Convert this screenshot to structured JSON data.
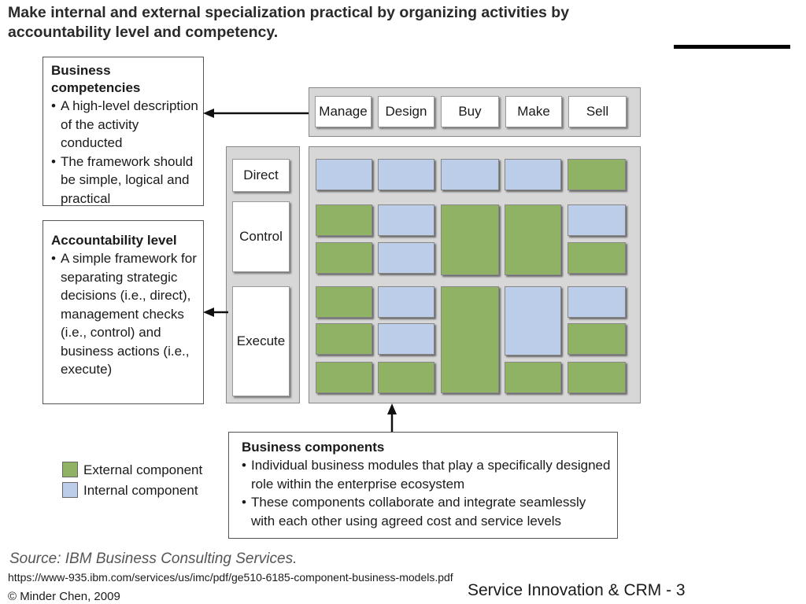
{
  "title": "Make internal and external specialization practical by organizing activities by accountability level and competency.",
  "competencies_box": {
    "heading": "Business competencies",
    "bullets": [
      "A high-level description of the activity conducted",
      "The framework should be simple, logical and practical"
    ]
  },
  "accountability_box": {
    "heading": "Accountability level",
    "bullets": [
      "A simple framework for separating strategic decisions (i.e., direct), management checks (i.e., control) and business actions (i.e., execute)"
    ]
  },
  "components_box": {
    "heading": "Business components",
    "bullets": [
      "Individual business modules that play a specifically designed role within the enterprise ecosystem",
      "These components collaborate and integrate seamlessly with each other using agreed cost and service levels"
    ]
  },
  "competencies": [
    "Manage",
    "Design",
    "Buy",
    "Make",
    "Sell"
  ],
  "levels": [
    "Direct",
    "Control",
    "Execute"
  ],
  "legend": {
    "external": "External component",
    "internal": "Internal component"
  },
  "colors": {
    "external": "#8fb264",
    "internal": "#bccde9"
  },
  "source": "Source: IBM Business Consulting Services.",
  "url": "https://www-935.ibm.com/services/us/imc/pdf/ge510-6185-component-business-models.pdf",
  "footer_right": "Service Innovation & CRM - 3",
  "copyright": "© Minder Chen, 2009"
}
